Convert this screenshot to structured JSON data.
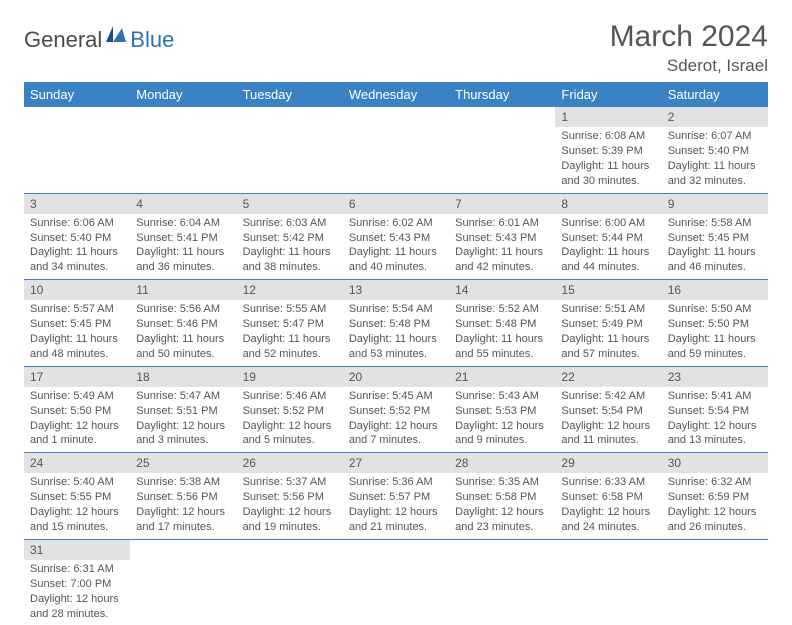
{
  "brand": {
    "part1": "General",
    "part2": "Blue"
  },
  "title": "March 2024",
  "location": "Sderot, Israel",
  "colors": {
    "header_bg": "#3b82c4",
    "header_text": "#ffffff",
    "daynum_bg": "#e2e2e2",
    "row_border": "#3b82c4",
    "brand_blue": "#2e72b4",
    "body_text": "#555555"
  },
  "weekdays": [
    "Sunday",
    "Monday",
    "Tuesday",
    "Wednesday",
    "Thursday",
    "Friday",
    "Saturday"
  ],
  "weeks": [
    [
      {
        "n": "",
        "sr": "",
        "ss": "",
        "dl": ""
      },
      {
        "n": "",
        "sr": "",
        "ss": "",
        "dl": ""
      },
      {
        "n": "",
        "sr": "",
        "ss": "",
        "dl": ""
      },
      {
        "n": "",
        "sr": "",
        "ss": "",
        "dl": ""
      },
      {
        "n": "",
        "sr": "",
        "ss": "",
        "dl": ""
      },
      {
        "n": "1",
        "sr": "Sunrise: 6:08 AM",
        "ss": "Sunset: 5:39 PM",
        "dl": "Daylight: 11 hours and 30 minutes."
      },
      {
        "n": "2",
        "sr": "Sunrise: 6:07 AM",
        "ss": "Sunset: 5:40 PM",
        "dl": "Daylight: 11 hours and 32 minutes."
      }
    ],
    [
      {
        "n": "3",
        "sr": "Sunrise: 6:06 AM",
        "ss": "Sunset: 5:40 PM",
        "dl": "Daylight: 11 hours and 34 minutes."
      },
      {
        "n": "4",
        "sr": "Sunrise: 6:04 AM",
        "ss": "Sunset: 5:41 PM",
        "dl": "Daylight: 11 hours and 36 minutes."
      },
      {
        "n": "5",
        "sr": "Sunrise: 6:03 AM",
        "ss": "Sunset: 5:42 PM",
        "dl": "Daylight: 11 hours and 38 minutes."
      },
      {
        "n": "6",
        "sr": "Sunrise: 6:02 AM",
        "ss": "Sunset: 5:43 PM",
        "dl": "Daylight: 11 hours and 40 minutes."
      },
      {
        "n": "7",
        "sr": "Sunrise: 6:01 AM",
        "ss": "Sunset: 5:43 PM",
        "dl": "Daylight: 11 hours and 42 minutes."
      },
      {
        "n": "8",
        "sr": "Sunrise: 6:00 AM",
        "ss": "Sunset: 5:44 PM",
        "dl": "Daylight: 11 hours and 44 minutes."
      },
      {
        "n": "9",
        "sr": "Sunrise: 5:58 AM",
        "ss": "Sunset: 5:45 PM",
        "dl": "Daylight: 11 hours and 46 minutes."
      }
    ],
    [
      {
        "n": "10",
        "sr": "Sunrise: 5:57 AM",
        "ss": "Sunset: 5:45 PM",
        "dl": "Daylight: 11 hours and 48 minutes."
      },
      {
        "n": "11",
        "sr": "Sunrise: 5:56 AM",
        "ss": "Sunset: 5:46 PM",
        "dl": "Daylight: 11 hours and 50 minutes."
      },
      {
        "n": "12",
        "sr": "Sunrise: 5:55 AM",
        "ss": "Sunset: 5:47 PM",
        "dl": "Daylight: 11 hours and 52 minutes."
      },
      {
        "n": "13",
        "sr": "Sunrise: 5:54 AM",
        "ss": "Sunset: 5:48 PM",
        "dl": "Daylight: 11 hours and 53 minutes."
      },
      {
        "n": "14",
        "sr": "Sunrise: 5:52 AM",
        "ss": "Sunset: 5:48 PM",
        "dl": "Daylight: 11 hours and 55 minutes."
      },
      {
        "n": "15",
        "sr": "Sunrise: 5:51 AM",
        "ss": "Sunset: 5:49 PM",
        "dl": "Daylight: 11 hours and 57 minutes."
      },
      {
        "n": "16",
        "sr": "Sunrise: 5:50 AM",
        "ss": "Sunset: 5:50 PM",
        "dl": "Daylight: 11 hours and 59 minutes."
      }
    ],
    [
      {
        "n": "17",
        "sr": "Sunrise: 5:49 AM",
        "ss": "Sunset: 5:50 PM",
        "dl": "Daylight: 12 hours and 1 minute."
      },
      {
        "n": "18",
        "sr": "Sunrise: 5:47 AM",
        "ss": "Sunset: 5:51 PM",
        "dl": "Daylight: 12 hours and 3 minutes."
      },
      {
        "n": "19",
        "sr": "Sunrise: 5:46 AM",
        "ss": "Sunset: 5:52 PM",
        "dl": "Daylight: 12 hours and 5 minutes."
      },
      {
        "n": "20",
        "sr": "Sunrise: 5:45 AM",
        "ss": "Sunset: 5:52 PM",
        "dl": "Daylight: 12 hours and 7 minutes."
      },
      {
        "n": "21",
        "sr": "Sunrise: 5:43 AM",
        "ss": "Sunset: 5:53 PM",
        "dl": "Daylight: 12 hours and 9 minutes."
      },
      {
        "n": "22",
        "sr": "Sunrise: 5:42 AM",
        "ss": "Sunset: 5:54 PM",
        "dl": "Daylight: 12 hours and 11 minutes."
      },
      {
        "n": "23",
        "sr": "Sunrise: 5:41 AM",
        "ss": "Sunset: 5:54 PM",
        "dl": "Daylight: 12 hours and 13 minutes."
      }
    ],
    [
      {
        "n": "24",
        "sr": "Sunrise: 5:40 AM",
        "ss": "Sunset: 5:55 PM",
        "dl": "Daylight: 12 hours and 15 minutes."
      },
      {
        "n": "25",
        "sr": "Sunrise: 5:38 AM",
        "ss": "Sunset: 5:56 PM",
        "dl": "Daylight: 12 hours and 17 minutes."
      },
      {
        "n": "26",
        "sr": "Sunrise: 5:37 AM",
        "ss": "Sunset: 5:56 PM",
        "dl": "Daylight: 12 hours and 19 minutes."
      },
      {
        "n": "27",
        "sr": "Sunrise: 5:36 AM",
        "ss": "Sunset: 5:57 PM",
        "dl": "Daylight: 12 hours and 21 minutes."
      },
      {
        "n": "28",
        "sr": "Sunrise: 5:35 AM",
        "ss": "Sunset: 5:58 PM",
        "dl": "Daylight: 12 hours and 23 minutes."
      },
      {
        "n": "29",
        "sr": "Sunrise: 6:33 AM",
        "ss": "Sunset: 6:58 PM",
        "dl": "Daylight: 12 hours and 24 minutes."
      },
      {
        "n": "30",
        "sr": "Sunrise: 6:32 AM",
        "ss": "Sunset: 6:59 PM",
        "dl": "Daylight: 12 hours and 26 minutes."
      }
    ],
    [
      {
        "n": "31",
        "sr": "Sunrise: 6:31 AM",
        "ss": "Sunset: 7:00 PM",
        "dl": "Daylight: 12 hours and 28 minutes."
      },
      {
        "n": "",
        "sr": "",
        "ss": "",
        "dl": ""
      },
      {
        "n": "",
        "sr": "",
        "ss": "",
        "dl": ""
      },
      {
        "n": "",
        "sr": "",
        "ss": "",
        "dl": ""
      },
      {
        "n": "",
        "sr": "",
        "ss": "",
        "dl": ""
      },
      {
        "n": "",
        "sr": "",
        "ss": "",
        "dl": ""
      },
      {
        "n": "",
        "sr": "",
        "ss": "",
        "dl": ""
      }
    ]
  ]
}
